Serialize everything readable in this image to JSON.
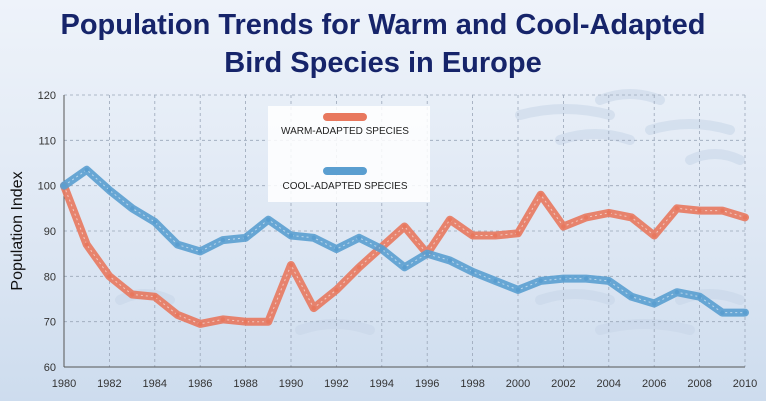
{
  "chart_data": {
    "type": "line",
    "title_line1": "Population Trends for Warm and Cool-Adapted",
    "title_line2": "Bird Species in Europe",
    "xlabel": "",
    "ylabel": "Population Index",
    "xlim": [
      1980,
      2010
    ],
    "ylim": [
      60,
      120
    ],
    "x_ticks": [
      "1980",
      "1982",
      "1984",
      "1986",
      "1988",
      "1990",
      "1992",
      "1994",
      "1996",
      "1998",
      "2000",
      "2002",
      "2004",
      "2006",
      "2008",
      "2010"
    ],
    "y_ticks": [
      "60",
      "70",
      "80",
      "90",
      "100",
      "110",
      "120"
    ],
    "grid": true,
    "legend_position": "top-center",
    "x": [
      1980,
      1981,
      1982,
      1983,
      1984,
      1985,
      1986,
      1987,
      1988,
      1989,
      1990,
      1991,
      1992,
      1993,
      1994,
      1995,
      1996,
      1997,
      1998,
      1999,
      2000,
      2001,
      2002,
      2003,
      2004,
      2005,
      2006,
      2007,
      2008,
      2009,
      2010
    ],
    "series": [
      {
        "name": "WARM-ADAPTED SPECIES",
        "color": "#e8785e",
        "values": [
          100,
          87,
          80,
          76,
          75.5,
          71.5,
          69.5,
          70.5,
          70,
          70,
          82.5,
          73,
          77,
          82,
          86.5,
          91,
          85,
          92.5,
          89,
          89,
          89.5,
          98,
          91,
          93,
          94,
          93,
          89,
          95,
          94.5,
          94.5,
          93
        ]
      },
      {
        "name": "COOL-ADAPTED SPECIES",
        "color": "#5a9ed0",
        "values": [
          100,
          103.5,
          99,
          95,
          92,
          87,
          85.5,
          88,
          88.5,
          92.5,
          89,
          88.5,
          86,
          88.5,
          86,
          82,
          85,
          83.5,
          81,
          79,
          77,
          79,
          79.5,
          79.5,
          79,
          75.5,
          74,
          76.5,
          75.5,
          72,
          72
        ]
      }
    ]
  }
}
